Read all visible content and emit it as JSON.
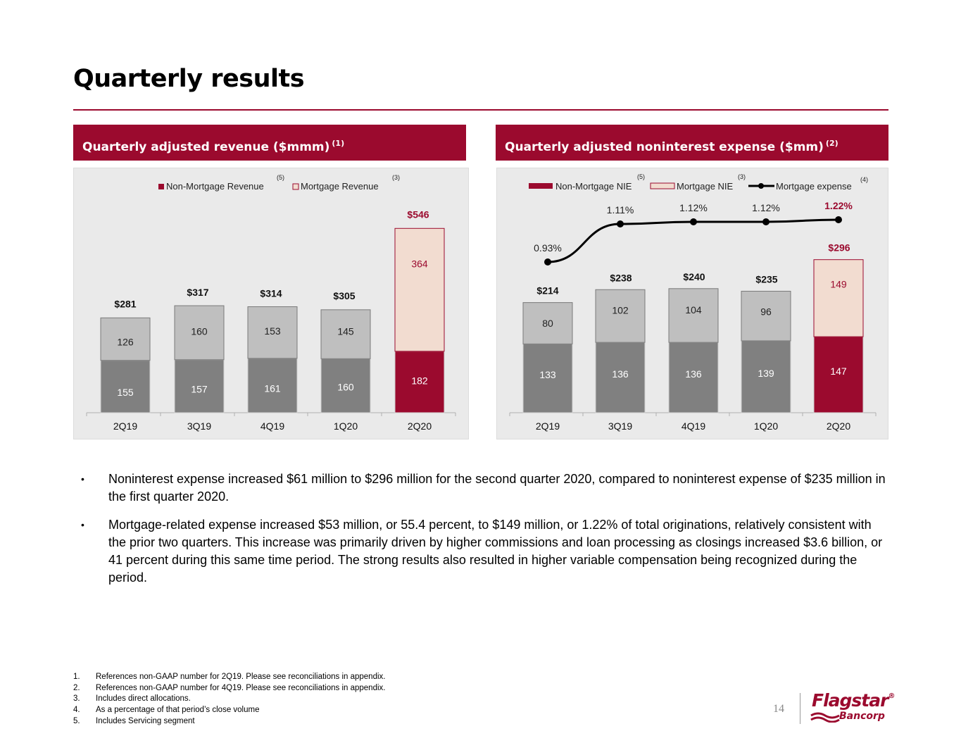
{
  "page": {
    "title": "Quarterly results",
    "page_number": "14"
  },
  "colors": {
    "brand": "#9b0a2e",
    "non_mortgage": "#808080",
    "mortgage_revenue": "#bfbfbf",
    "mortgage_current": "#f2dcd0",
    "line": "#000000"
  },
  "left_panel": {
    "header": "Quarterly adjusted revenue ($mmm)",
    "header_note": "(1)"
  },
  "right_panel": {
    "header": "Quarterly adjusted noninterest expense ($mm)",
    "header_note": "(2)"
  },
  "chart_data": [
    {
      "type": "bar",
      "stacked": true,
      "categories": [
        "2Q19",
        "3Q19",
        "4Q19",
        "1Q20",
        "2Q20"
      ],
      "category_notes": [
        "",
        "",
        "(5)",
        "",
        "(3)"
      ],
      "series": [
        {
          "name": "Non-Mortgage Revenue",
          "values": [
            155,
            157,
            161,
            160,
            182
          ]
        },
        {
          "name": "Mortgage Revenue",
          "values": [
            126,
            160,
            153,
            145,
            364
          ]
        }
      ],
      "totals": [
        "$281",
        "$317",
        "$314",
        "$305",
        "$546"
      ],
      "legend_position": "top",
      "ylim": [
        0,
        546
      ]
    },
    {
      "type": "bar",
      "stacked": true,
      "categories": [
        "2Q19",
        "3Q19",
        "4Q19",
        "1Q20",
        "2Q20"
      ],
      "series": [
        {
          "name": "Non-Mortgage NIE",
          "values": [
            133,
            136,
            136,
            139,
            147
          ]
        },
        {
          "name": "Mortgage NIE",
          "values": [
            80,
            102,
            104,
            96,
            149
          ]
        },
        {
          "name": "Mortgage expense",
          "type": "line",
          "values": [
            0.93,
            1.11,
            1.12,
            1.12,
            1.22
          ],
          "labels": [
            "0.93%",
            "1.11%",
            "1.12%",
            "1.12%",
            "1.22%"
          ]
        }
      ],
      "totals": [
        "$214",
        "$238",
        "$240",
        "$235",
        "$296"
      ],
      "legend_notes": [
        "(5)",
        "(3)",
        "(4)"
      ],
      "legend_position": "top"
    }
  ],
  "bullets": [
    "Noninterest expense increased $61 million to $296 million for the second quarter 2020, compared to noninterest expense of $235 million in the first quarter 2020.",
    "Mortgage-related expense increased $53 million, or 55.4 percent, to $149 million, or 1.22% of total originations, relatively consistent with the prior two quarters. This increase was primarily driven by higher commissions and loan processing as closings increased $3.6 billion, or 41 percent during this same time period.  The strong results also resulted in higher variable compensation being recognized during the period."
  ],
  "bullet_symbol": "•",
  "footnotes": [
    {
      "num": "1.",
      "text": "References non-GAAP number for 2Q19. Please see reconciliations in appendix."
    },
    {
      "num": "2.",
      "text": "References non-GAAP number for 4Q19. Please see reconciliations in appendix."
    },
    {
      "num": "3.",
      "text": "Includes direct allocations."
    },
    {
      "num": "4.",
      "text": "As a percentage of that period’s close volume"
    },
    {
      "num": "5.",
      "text": "Includes Servicing segment"
    }
  ],
  "logo": {
    "name": "Flagstar",
    "registered": "®",
    "sub": "Bancorp"
  }
}
